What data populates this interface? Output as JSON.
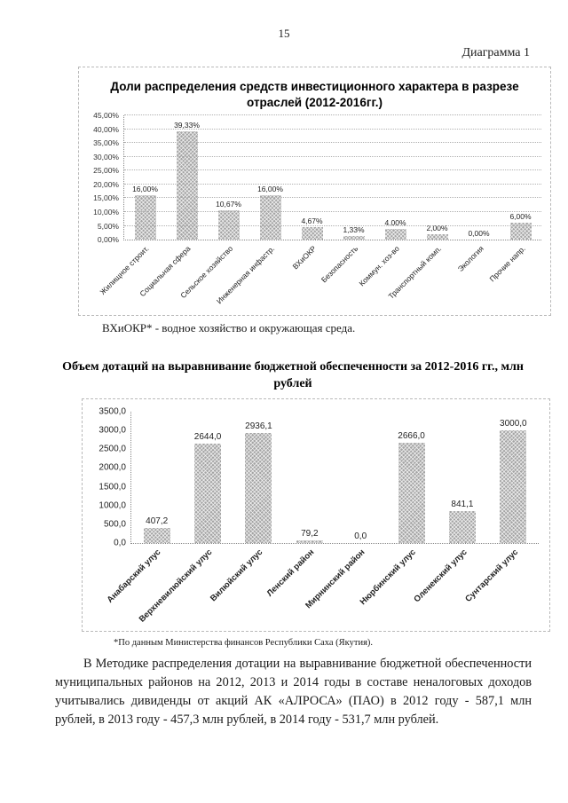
{
  "page": {
    "number": "15",
    "diagram_caption": "Диаграмма 1"
  },
  "note_vhiokr": "ВХиОКР* - водное хозяйство и окружающая среда.",
  "chart2_title": "Объем дотаций на выравнивание бюджетной обеспеченности за 2012-2016 гг., млн рублей",
  "footnote_source": "*По данным Министерства финансов Республики Саха (Якутия).",
  "paragraph": "В Методике распределения дотации на выравнивание бюджетной обеспеченности муниципальных районов на 2012, 2013 и 2014 годы в составе неналоговых доходов учитывались дивиденды от акций АК «АЛРОСА» (ПАО) в 2012 году - 587,1 млн рублей, в 2013 году - 457,3 млн рублей, в 2014 году - 531,7 млн рублей.",
  "chart_data": [
    {
      "type": "bar",
      "title": "Доли распределения средств инвестиционного характера в разрезе отраслей (2012-2016гг.)",
      "categories": [
        "Жилищное строит.",
        "Социальная сфера",
        "Сельское хозяйство",
        "Инженерная инфастр.",
        "ВХиОКР",
        "Безопасность",
        "Коммун. хоз-во",
        "Транспортный комп.",
        "Экология",
        "Прочие напр."
      ],
      "values": [
        16.0,
        39.33,
        10.67,
        16.0,
        4.67,
        1.33,
        4.0,
        2.0,
        0.0,
        6.0
      ],
      "value_labels": [
        "16,00%",
        "39,33%",
        "10,67%",
        "16,00%",
        "4,67%",
        "1,33%",
        "4,00%",
        "2,00%",
        "0,00%",
        "6,00%"
      ],
      "ytick_labels": [
        "0,00%",
        "5,00%",
        "10,00%",
        "15,00%",
        "20,00%",
        "25,00%",
        "30,00%",
        "35,00%",
        "40,00%",
        "45,00%"
      ],
      "ylim": [
        0,
        45
      ],
      "xlabel": "",
      "ylabel": "",
      "grid": true,
      "legend": false,
      "bar_color_hex": "#a3a3a3"
    },
    {
      "type": "bar",
      "title": "Объем дотаций на выравнивание бюджетной обеспеченности за 2012-2016 гг., млн рублей",
      "categories": [
        "Анабарский улус",
        "Верхневилюйский улус",
        "Вилюйский улус",
        "Ленский район",
        "Мирнинский район",
        "Нюрбинский улус",
        "Оленекский улус",
        "Сунтарский улус"
      ],
      "values": [
        407.2,
        2644.0,
        2936.1,
        79.2,
        0.0,
        2666.0,
        841.1,
        3000.0
      ],
      "value_labels": [
        "407,2",
        "2644,0",
        "2936,1",
        "79,2",
        "0,0",
        "2666,0",
        "841,1",
        "3000,0"
      ],
      "ytick_labels": [
        "0,0",
        "500,0",
        "1000,0",
        "1500,0",
        "2000,0",
        "2500,0",
        "3000,0",
        "3500,0"
      ],
      "ylim": [
        0,
        3500
      ],
      "xlabel": "",
      "ylabel": "",
      "grid": false,
      "legend": false,
      "bar_color_hex": "#a3a3a3"
    }
  ]
}
